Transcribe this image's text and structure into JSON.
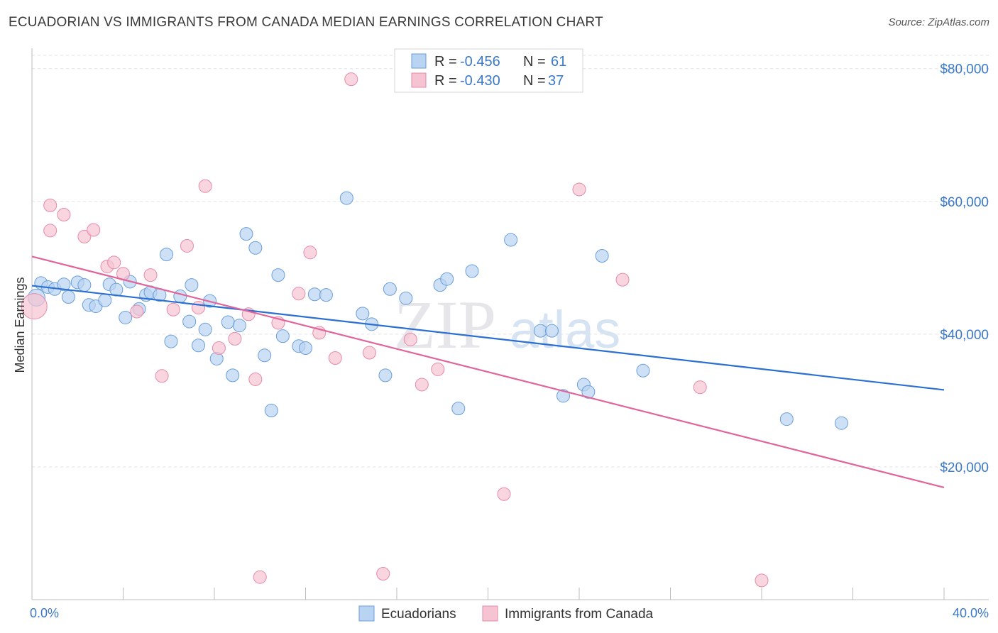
{
  "title": "ECUADORIAN VS IMMIGRANTS FROM CANADA MEDIAN EARNINGS CORRELATION CHART",
  "source": "Source: ZipAtlas.com",
  "watermark": {
    "zip": "ZIP",
    "atlas": "atlas"
  },
  "legend_top": [
    {
      "r_label": "R =",
      "r_value": "-0.456",
      "n_label": "N =",
      "n_value": "61"
    },
    {
      "r_label": "R =",
      "r_value": "-0.430",
      "n_label": "N =",
      "n_value": "37"
    }
  ],
  "legend_bottom": [
    "Ecuadorians",
    "Immigrants from Canada"
  ],
  "colors": {
    "blue_fill": "#b9d3f2",
    "blue_stroke": "#6a9fd8",
    "blue_line": "#2a6fd1",
    "pink_fill": "#f6c3d3",
    "pink_stroke": "#e68aa8",
    "pink_line": "#e0659a",
    "grid": "#e2e2e2",
    "tick_text": "#3a78c9"
  },
  "chart_data": {
    "type": "scatter",
    "title": "ECUADORIAN VS IMMIGRANTS FROM CANADA MEDIAN EARNINGS CORRELATION CHART",
    "xlabel": "",
    "ylabel": "Median Earnings",
    "xlim": [
      0,
      40
    ],
    "ylim": [
      0,
      82000
    ],
    "x_tick_labels": [
      "0.0%",
      "40.0%"
    ],
    "y_ticks": [
      20000,
      40000,
      60000,
      80000
    ],
    "y_tick_labels": [
      "$20,000",
      "$40,000",
      "$60,000",
      "$80,000"
    ],
    "grid": true,
    "legend_position": "top-center",
    "series": [
      {
        "name": "Ecuadorians",
        "r": -0.456,
        "n": 61,
        "trend": {
          "x": [
            0,
            40
          ],
          "y": [
            47300,
            31600
          ]
        },
        "points": [
          [
            0.2,
            45500
          ],
          [
            0.4,
            47700
          ],
          [
            0.7,
            47100
          ],
          [
            1.0,
            46800
          ],
          [
            1.4,
            47500
          ],
          [
            1.6,
            45600
          ],
          [
            2.0,
            47800
          ],
          [
            2.3,
            47400
          ],
          [
            2.5,
            44400
          ],
          [
            2.8,
            44200
          ],
          [
            3.2,
            45100
          ],
          [
            3.4,
            47500
          ],
          [
            3.7,
            46700
          ],
          [
            4.1,
            42500
          ],
          [
            4.3,
            47900
          ],
          [
            4.7,
            43800
          ],
          [
            5.0,
            45900
          ],
          [
            5.2,
            46300
          ],
          [
            5.6,
            45900
          ],
          [
            5.9,
            52000
          ],
          [
            6.1,
            38900
          ],
          [
            6.5,
            45700
          ],
          [
            6.9,
            41900
          ],
          [
            7.0,
            47400
          ],
          [
            7.3,
            38300
          ],
          [
            7.6,
            40700
          ],
          [
            7.8,
            45000
          ],
          [
            8.1,
            36300
          ],
          [
            8.6,
            41800
          ],
          [
            8.8,
            33800
          ],
          [
            9.1,
            41300
          ],
          [
            9.4,
            55100
          ],
          [
            9.8,
            53000
          ],
          [
            10.2,
            36800
          ],
          [
            10.5,
            28500
          ],
          [
            10.8,
            48900
          ],
          [
            11.0,
            39700
          ],
          [
            11.7,
            38200
          ],
          [
            12.0,
            37900
          ],
          [
            12.4,
            46000
          ],
          [
            12.9,
            45900
          ],
          [
            13.8,
            60500
          ],
          [
            14.5,
            43100
          ],
          [
            14.9,
            41500
          ],
          [
            15.5,
            33800
          ],
          [
            15.7,
            46800
          ],
          [
            16.4,
            45400
          ],
          [
            17.9,
            47400
          ],
          [
            18.2,
            48300
          ],
          [
            18.7,
            28800
          ],
          [
            19.3,
            49500
          ],
          [
            21.0,
            54200
          ],
          [
            22.3,
            40500
          ],
          [
            22.8,
            40500
          ],
          [
            23.3,
            30700
          ],
          [
            24.2,
            32400
          ],
          [
            24.4,
            31300
          ],
          [
            25.0,
            51800
          ],
          [
            26.8,
            34500
          ],
          [
            33.1,
            27200
          ],
          [
            35.5,
            26600
          ]
        ]
      },
      {
        "name": "Immigrants from Canada",
        "r": -0.43,
        "n": 37,
        "trend": {
          "x": [
            0,
            40
          ],
          "y": [
            51700,
            16900
          ]
        },
        "points": [
          [
            0.1,
            44200
          ],
          [
            0.8,
            59400
          ],
          [
            0.8,
            55600
          ],
          [
            1.4,
            58000
          ],
          [
            2.3,
            54700
          ],
          [
            2.7,
            55700
          ],
          [
            3.3,
            50200
          ],
          [
            3.6,
            50800
          ],
          [
            4.0,
            49100
          ],
          [
            4.6,
            43400
          ],
          [
            5.2,
            48900
          ],
          [
            5.7,
            33700
          ],
          [
            6.2,
            43700
          ],
          [
            6.8,
            53300
          ],
          [
            7.3,
            44000
          ],
          [
            7.6,
            62300
          ],
          [
            8.2,
            37900
          ],
          [
            8.9,
            39300
          ],
          [
            9.5,
            43000
          ],
          [
            9.8,
            33200
          ],
          [
            10.0,
            3400
          ],
          [
            10.8,
            41700
          ],
          [
            11.7,
            46100
          ],
          [
            12.2,
            52300
          ],
          [
            12.6,
            40200
          ],
          [
            13.3,
            36400
          ],
          [
            14.0,
            78400
          ],
          [
            14.8,
            37200
          ],
          [
            15.4,
            3900
          ],
          [
            16.6,
            39200
          ],
          [
            17.1,
            32400
          ],
          [
            17.8,
            34700
          ],
          [
            20.7,
            15900
          ],
          [
            24.0,
            61800
          ],
          [
            25.9,
            48200
          ],
          [
            29.3,
            32000
          ],
          [
            32.0,
            2900
          ]
        ]
      }
    ]
  }
}
